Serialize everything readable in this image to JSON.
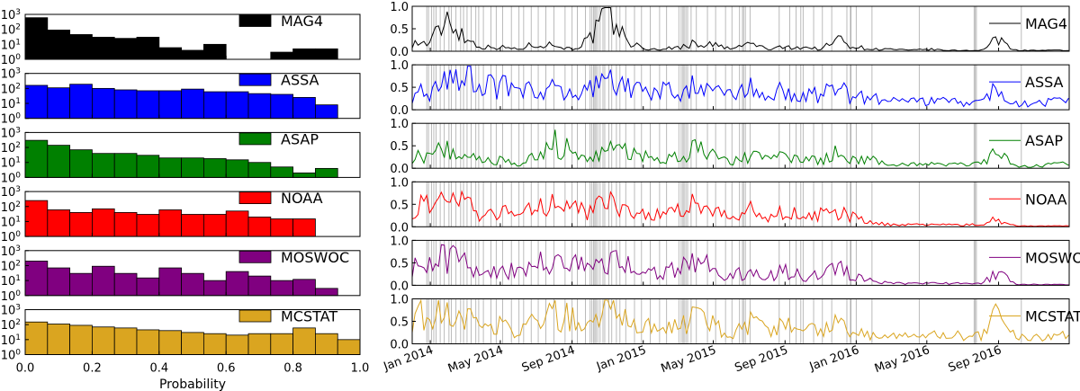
{
  "chart_data": [
    {
      "type": "bar",
      "panel": "histograms",
      "xlabel": "Probability",
      "xlim": [
        0.0,
        1.0
      ],
      "x_ticks": [
        "0.0",
        "0.2",
        "0.4",
        "0.6",
        "0.8",
        "1.0"
      ],
      "yscale": "log",
      "ylim": [
        1,
        1000
      ],
      "y_ticks": [
        "10^0",
        "10^1",
        "10^2",
        "10^3"
      ],
      "bin_width": 0.0667,
      "legend_position": "top-right",
      "series": [
        {
          "name": "MAG4",
          "color": "#000000",
          "bin_starts": [
            0.0,
            0.0667,
            0.1333,
            0.2,
            0.2667,
            0.3333,
            0.4,
            0.4667,
            0.5333,
            0.6,
            0.6667,
            0.7333,
            0.8,
            0.8667
          ],
          "values": [
            600,
            90,
            45,
            30,
            25,
            30,
            6,
            4,
            10,
            0,
            0,
            3,
            5,
            5
          ]
        },
        {
          "name": "ASSA",
          "color": "#0000ff",
          "bin_starts": [
            0.0,
            0.0667,
            0.1333,
            0.2,
            0.2667,
            0.3333,
            0.4,
            0.4667,
            0.5333,
            0.6,
            0.6667,
            0.7333,
            0.8,
            0.8667
          ],
          "values": [
            160,
            110,
            190,
            100,
            80,
            70,
            70,
            90,
            60,
            60,
            45,
            40,
            25,
            8
          ]
        },
        {
          "name": "ASAP",
          "color": "#008000",
          "bin_starts": [
            0.0,
            0.0667,
            0.1333,
            0.2,
            0.2667,
            0.3333,
            0.4,
            0.4667,
            0.5333,
            0.6,
            0.6667,
            0.7333,
            0.8,
            0.8667
          ],
          "values": [
            300,
            140,
            70,
            40,
            40,
            30,
            20,
            20,
            18,
            15,
            10,
            5,
            2,
            4
          ]
        },
        {
          "name": "NOAA",
          "color": "#ff0000",
          "bin_starts": [
            0.0,
            0.0667,
            0.1333,
            0.2,
            0.2667,
            0.3333,
            0.4,
            0.4667,
            0.5333,
            0.6,
            0.6667,
            0.7333,
            0.8
          ],
          "values": [
            250,
            60,
            40,
            70,
            40,
            30,
            60,
            30,
            30,
            50,
            20,
            15,
            15
          ]
        },
        {
          "name": "MOSWOC",
          "color": "#800080",
          "bin_starts": [
            0.0,
            0.0667,
            0.1333,
            0.2,
            0.2667,
            0.3333,
            0.4,
            0.4667,
            0.5333,
            0.6,
            0.6667,
            0.7333,
            0.8,
            0.8667
          ],
          "values": [
            200,
            70,
            30,
            90,
            30,
            15,
            70,
            30,
            10,
            40,
            20,
            10,
            12,
            3
          ]
        },
        {
          "name": "MCSTAT",
          "color": "#daa520",
          "bin_starts": [
            0.0,
            0.0667,
            0.1333,
            0.2,
            0.2667,
            0.3333,
            0.4,
            0.4667,
            0.5333,
            0.6,
            0.6667,
            0.7333,
            0.8,
            0.8667,
            0.9333
          ],
          "values": [
            150,
            110,
            90,
            70,
            60,
            45,
            40,
            30,
            25,
            20,
            25,
            25,
            60,
            25,
            10
          ]
        }
      ]
    },
    {
      "type": "line",
      "panel": "time-series",
      "ylim": [
        0.0,
        1.0
      ],
      "y_ticks": [
        "0.0",
        "0.5",
        "1.0"
      ],
      "x_start": "2013-12-01",
      "x_end": "2016-12-31",
      "x_ticks": [
        {
          "date": "2014-01-01",
          "label": "Jan 2014"
        },
        {
          "date": "2014-05-01",
          "label": "May 2014"
        },
        {
          "date": "2014-09-01",
          "label": "Sep 2014"
        },
        {
          "date": "2015-01-01",
          "label": "Jan 2015"
        },
        {
          "date": "2015-05-01",
          "label": "May 2015"
        },
        {
          "date": "2015-09-01",
          "label": "Sep 2015"
        },
        {
          "date": "2016-01-01",
          "label": "Jan 2016"
        },
        {
          "date": "2016-05-01",
          "label": "May 2016"
        },
        {
          "date": "2016-09-01",
          "label": "Sep 2016"
        }
      ],
      "event_dates": [
        "2013-12-26",
        "2013-12-29",
        "2014-01-03",
        "2014-01-07",
        "2014-01-11",
        "2014-01-18",
        "2014-01-25",
        "2014-02-02",
        "2014-02-06",
        "2014-02-14",
        "2014-02-22",
        "2014-02-27",
        "2014-03-05",
        "2014-03-12",
        "2014-03-20",
        "2014-03-25",
        "2014-04-02",
        "2014-04-15",
        "2014-04-24",
        "2014-05-05",
        "2014-05-20",
        "2014-06-02",
        "2014-06-10",
        "2014-06-23",
        "2014-07-05",
        "2014-07-18",
        "2014-08-01",
        "2014-08-20",
        "2014-09-01",
        "2014-09-10",
        "2014-09-24",
        "2014-10-02",
        "2014-10-05",
        "2014-10-08",
        "2014-10-10",
        "2014-10-12",
        "2014-10-15",
        "2014-10-19",
        "2014-10-24",
        "2014-10-27",
        "2014-11-03",
        "2014-11-08",
        "2014-11-16",
        "2014-11-22",
        "2014-12-02",
        "2014-12-17",
        "2014-12-29",
        "2015-01-13",
        "2015-01-29",
        "2015-02-10",
        "2015-03-03",
        "2015-03-07",
        "2015-03-10",
        "2015-03-12",
        "2015-03-15",
        "2015-03-18",
        "2015-03-24",
        "2015-04-02",
        "2015-04-21",
        "2015-05-05",
        "2015-05-22",
        "2015-06-02",
        "2015-06-15",
        "2015-06-20",
        "2015-06-22",
        "2015-06-25",
        "2015-07-03",
        "2015-08-22",
        "2015-09-09",
        "2015-09-20",
        "2015-09-28",
        "2015-10-02",
        "2015-10-20",
        "2015-11-04",
        "2015-11-20",
        "2015-12-16",
        "2015-12-22",
        "2015-12-23",
        "2016-01-01",
        "2016-01-28",
        "2016-04-18",
        "2016-07-21",
        "2016-07-23",
        "2016-07-25",
        "2016-10-10"
      ],
      "series": [
        {
          "name": "MAG4",
          "color": "#000000",
          "values_monthly": [
            0.2,
            0.9,
            0.3,
            0.1,
            0.1,
            0.05,
            0.2,
            0.15,
            0.05,
            0.3,
            0.9,
            0.3,
            0.05,
            0.05,
            0.1,
            0.2,
            0.15,
            0.05,
            0.2,
            0.05,
            0.1,
            0.1,
            0.05,
            0.3,
            0.1,
            0.05,
            0.05,
            0.02,
            0.05,
            0.02,
            0.02,
            0.02,
            0.3,
            0.02,
            0.02,
            0.02,
            0.02
          ]
        },
        {
          "name": "ASSA",
          "color": "#0000ff",
          "values_monthly": [
            0.4,
            0.8,
            0.7,
            0.6,
            0.6,
            0.4,
            0.5,
            0.5,
            0.4,
            0.5,
            0.7,
            0.6,
            0.5,
            0.5,
            0.4,
            0.6,
            0.4,
            0.4,
            0.5,
            0.3,
            0.5,
            0.3,
            0.4,
            0.5,
            0.3,
            0.3,
            0.2,
            0.2,
            0.2,
            0.2,
            0.2,
            0.2,
            0.5,
            0.15,
            0.15,
            0.2,
            0.2
          ]
        },
        {
          "name": "ASAP",
          "color": "#008000",
          "values_monthly": [
            0.3,
            0.5,
            0.3,
            0.2,
            0.2,
            0.1,
            0.3,
            0.6,
            0.4,
            0.2,
            0.5,
            0.4,
            0.3,
            0.2,
            0.3,
            0.5,
            0.3,
            0.2,
            0.3,
            0.2,
            0.3,
            0.2,
            0.2,
            0.4,
            0.2,
            0.2,
            0.1,
            0.1,
            0.1,
            0.1,
            0.1,
            0.1,
            0.4,
            0.05,
            0.05,
            0.1,
            0.1
          ]
        },
        {
          "name": "NOAA",
          "color": "#ff0000",
          "values_monthly": [
            0.5,
            0.7,
            0.5,
            0.3,
            0.4,
            0.3,
            0.5,
            0.6,
            0.5,
            0.4,
            0.7,
            0.5,
            0.3,
            0.3,
            0.4,
            0.6,
            0.4,
            0.2,
            0.4,
            0.2,
            0.4,
            0.2,
            0.3,
            0.4,
            0.2,
            0.1,
            0.05,
            0.05,
            0.05,
            0.05,
            0.05,
            0.05,
            0.2,
            0.02,
            0.02,
            0.02,
            0.02
          ]
        },
        {
          "name": "MOSWOC",
          "color": "#800080",
          "values_monthly": [
            0.5,
            0.7,
            0.5,
            0.3,
            0.4,
            0.3,
            0.5,
            0.6,
            0.5,
            0.4,
            0.7,
            0.5,
            0.3,
            0.3,
            0.4,
            0.6,
            0.4,
            0.2,
            0.4,
            0.2,
            0.4,
            0.2,
            0.3,
            0.4,
            0.2,
            0.1,
            0.05,
            0.05,
            0.05,
            0.05,
            0.05,
            0.05,
            0.3,
            0.02,
            0.02,
            0.02,
            0.02
          ]
        },
        {
          "name": "MCSTAT",
          "color": "#daa520",
          "values_monthly": [
            0.7,
            0.9,
            0.6,
            0.4,
            0.5,
            0.3,
            0.6,
            0.7,
            0.6,
            0.5,
            0.8,
            0.6,
            0.4,
            0.4,
            0.5,
            0.7,
            0.5,
            0.3,
            0.5,
            0.3,
            0.5,
            0.3,
            0.4,
            0.5,
            0.3,
            0.2,
            0.2,
            0.2,
            0.2,
            0.2,
            0.2,
            0.2,
            0.7,
            0.15,
            0.15,
            0.2,
            0.2
          ]
        }
      ]
    }
  ]
}
